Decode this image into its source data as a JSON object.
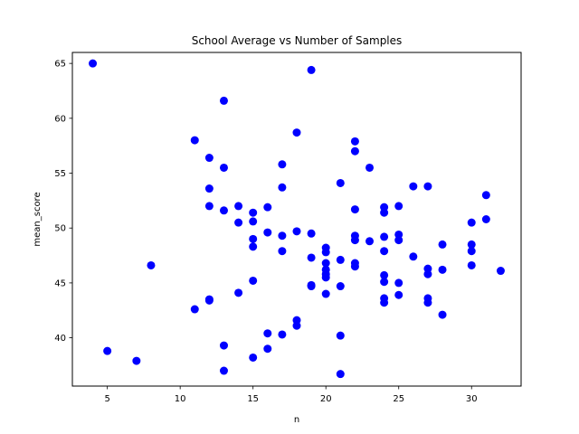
{
  "chart_data": {
    "type": "scatter",
    "title": "School Average vs Number of Samples",
    "xlabel": "n",
    "ylabel": "mean_score",
    "xlim": [
      2.6,
      33.4
    ],
    "ylim": [
      35.6,
      66.0
    ],
    "xticks": [
      5,
      10,
      15,
      20,
      25,
      30
    ],
    "yticks": [
      40,
      45,
      50,
      55,
      60,
      65
    ],
    "grid": false,
    "marker_color": "#0000ff",
    "series": [
      {
        "points": [
          [
            4,
            65.0
          ],
          [
            5,
            38.8
          ],
          [
            7,
            37.9
          ],
          [
            8,
            46.6
          ],
          [
            11,
            58.0
          ],
          [
            11,
            42.6
          ],
          [
            12,
            56.4
          ],
          [
            12,
            53.6
          ],
          [
            12,
            52.0
          ],
          [
            12,
            43.5
          ],
          [
            12,
            43.4
          ],
          [
            13,
            61.6
          ],
          [
            13,
            55.5
          ],
          [
            13,
            51.6
          ],
          [
            13,
            39.3
          ],
          [
            13,
            37.0
          ],
          [
            14,
            52.0
          ],
          [
            14,
            50.5
          ],
          [
            14,
            44.1
          ],
          [
            15,
            51.4
          ],
          [
            15,
            50.6
          ],
          [
            15,
            49.0
          ],
          [
            15,
            48.3
          ],
          [
            15,
            45.2
          ],
          [
            15,
            38.2
          ],
          [
            16,
            51.9
          ],
          [
            16,
            49.6
          ],
          [
            16,
            40.4
          ],
          [
            16,
            39.0
          ],
          [
            17,
            55.8
          ],
          [
            17,
            53.7
          ],
          [
            17,
            49.3
          ],
          [
            17,
            47.9
          ],
          [
            17,
            40.3
          ],
          [
            18,
            58.7
          ],
          [
            18,
            49.7
          ],
          [
            18,
            41.6
          ],
          [
            18,
            41.1
          ],
          [
            19,
            64.4
          ],
          [
            19,
            49.5
          ],
          [
            19,
            47.3
          ],
          [
            19,
            44.8
          ],
          [
            19,
            44.7
          ],
          [
            20,
            48.2
          ],
          [
            20,
            47.8
          ],
          [
            20,
            46.8
          ],
          [
            20,
            46.2
          ],
          [
            20,
            45.8
          ],
          [
            20,
            45.5
          ],
          [
            20,
            44.0
          ],
          [
            21,
            54.1
          ],
          [
            21,
            47.1
          ],
          [
            21,
            44.7
          ],
          [
            21,
            40.2
          ],
          [
            21,
            36.7
          ],
          [
            22,
            57.9
          ],
          [
            22,
            57.0
          ],
          [
            22,
            51.7
          ],
          [
            22,
            49.3
          ],
          [
            22,
            48.9
          ],
          [
            22,
            46.8
          ],
          [
            22,
            46.5
          ],
          [
            23,
            55.5
          ],
          [
            23,
            48.8
          ],
          [
            24,
            51.9
          ],
          [
            24,
            51.4
          ],
          [
            24,
            49.2
          ],
          [
            24,
            47.9
          ],
          [
            24,
            45.7
          ],
          [
            24,
            45.1
          ],
          [
            24,
            43.6
          ],
          [
            24,
            43.2
          ],
          [
            25,
            52.0
          ],
          [
            25,
            49.4
          ],
          [
            25,
            48.9
          ],
          [
            25,
            45.0
          ],
          [
            25,
            43.9
          ],
          [
            26,
            53.8
          ],
          [
            26,
            47.4
          ],
          [
            27,
            53.8
          ],
          [
            27,
            46.3
          ],
          [
            27,
            45.8
          ],
          [
            27,
            43.6
          ],
          [
            27,
            43.2
          ],
          [
            28,
            48.5
          ],
          [
            28,
            46.2
          ],
          [
            28,
            42.1
          ],
          [
            30,
            50.5
          ],
          [
            30,
            48.5
          ],
          [
            30,
            47.9
          ],
          [
            30,
            46.6
          ],
          [
            31,
            53.0
          ],
          [
            31,
            50.8
          ],
          [
            32,
            46.1
          ]
        ]
      }
    ]
  }
}
